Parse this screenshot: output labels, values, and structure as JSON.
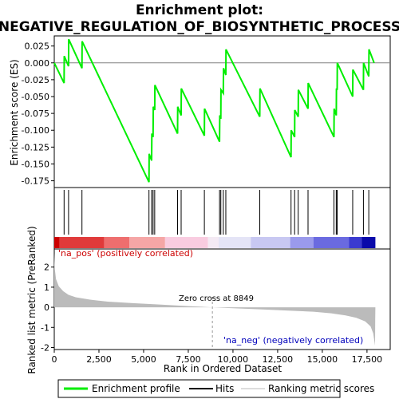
{
  "chart_data": {
    "type": "line",
    "title_line1": "Enrichment plot:",
    "title_line2": "NEGATIVE_REGULATION_OF_BIOSYNTHETIC_PROCESS",
    "xlabel": "Rank in Ordered Dataset",
    "ylabel_top": "Enrichment score (ES)",
    "ylabel_bottom": "Ranked list metric (PreRanked)",
    "xlim": [
      0,
      18800
    ],
    "es_ylim": [
      -0.185,
      0.04
    ],
    "metric_ylim": [
      -2.1,
      2.9
    ],
    "x_ticks": [
      0,
      2500,
      5000,
      7500,
      10000,
      12500,
      15000,
      17500
    ],
    "x_tick_labels": [
      "0",
      "2,500",
      "5,000",
      "7,500",
      "10,000",
      "12,500",
      "15,000",
      "17,500"
    ],
    "es_ticks": [
      0.025,
      0.0,
      -0.025,
      -0.05,
      -0.075,
      -0.1,
      -0.125,
      -0.15,
      -0.175
    ],
    "es_tick_labels": [
      "0.025",
      "0.000",
      "-0.025",
      "-0.050",
      "-0.075",
      "-0.100",
      "-0.125",
      "-0.150",
      "-0.175"
    ],
    "metric_ticks": [
      2,
      1,
      0,
      -1,
      -2
    ],
    "metric_tick_labels": [
      "2",
      "1",
      "0",
      "-1",
      "-2"
    ],
    "es_points": [
      [
        0,
        0.0
      ],
      [
        550,
        -0.03
      ],
      [
        560,
        0.01
      ],
      [
        800,
        -0.005
      ],
      [
        810,
        0.035
      ],
      [
        1550,
        -0.008
      ],
      [
        1560,
        0.032
      ],
      [
        5300,
        -0.177
      ],
      [
        5310,
        -0.135
      ],
      [
        5450,
        -0.145
      ],
      [
        5460,
        -0.105
      ],
      [
        5530,
        -0.11
      ],
      [
        5540,
        -0.065
      ],
      [
        5620,
        -0.07
      ],
      [
        5630,
        -0.033
      ],
      [
        6900,
        -0.105
      ],
      [
        6910,
        -0.065
      ],
      [
        7100,
        -0.078
      ],
      [
        7110,
        -0.038
      ],
      [
        8400,
        -0.108
      ],
      [
        8410,
        -0.068
      ],
      [
        9250,
        -0.117
      ],
      [
        9260,
        -0.078
      ],
      [
        9320,
        -0.083
      ],
      [
        9330,
        -0.04
      ],
      [
        9460,
        -0.045
      ],
      [
        9470,
        -0.008
      ],
      [
        9600,
        -0.018
      ],
      [
        9610,
        0.02
      ],
      [
        11500,
        -0.08
      ],
      [
        11510,
        -0.038
      ],
      [
        13250,
        -0.14
      ],
      [
        13260,
        -0.1
      ],
      [
        13450,
        -0.11
      ],
      [
        13460,
        -0.07
      ],
      [
        13650,
        -0.08
      ],
      [
        13660,
        -0.04
      ],
      [
        14200,
        -0.068
      ],
      [
        14210,
        -0.03
      ],
      [
        15650,
        -0.11
      ],
      [
        15660,
        -0.068
      ],
      [
        15780,
        -0.078
      ],
      [
        15790,
        -0.038
      ],
      [
        15830,
        -0.04
      ],
      [
        15840,
        0.0
      ],
      [
        16700,
        -0.05
      ],
      [
        16710,
        -0.01
      ],
      [
        17300,
        -0.04
      ],
      [
        17310,
        0.0
      ],
      [
        17600,
        -0.02
      ],
      [
        17610,
        0.02
      ],
      [
        17900,
        0.0
      ]
    ],
    "hits": [
      550,
      800,
      1550,
      5300,
      5450,
      5530,
      5620,
      6900,
      7100,
      8400,
      9250,
      9320,
      9460,
      9600,
      11500,
      13250,
      13450,
      13650,
      14200,
      15650,
      15780,
      15830,
      16700,
      17300,
      17600
    ],
    "metric_points": [
      [
        0,
        2.7
      ],
      [
        30,
        1.9
      ],
      [
        100,
        1.4
      ],
      [
        250,
        1.05
      ],
      [
        500,
        0.8
      ],
      [
        800,
        0.62
      ],
      [
        1200,
        0.5
      ],
      [
        2000,
        0.38
      ],
      [
        3000,
        0.28
      ],
      [
        4500,
        0.2
      ],
      [
        6000,
        0.13
      ],
      [
        7500,
        0.06
      ],
      [
        8849,
        0.0
      ],
      [
        10000,
        -0.05
      ],
      [
        11500,
        -0.1
      ],
      [
        12500,
        -0.14
      ],
      [
        13500,
        -0.18
      ],
      [
        14500,
        -0.22
      ],
      [
        15500,
        -0.3
      ],
      [
        16300,
        -0.4
      ],
      [
        16900,
        -0.52
      ],
      [
        17400,
        -0.7
      ],
      [
        17700,
        -0.95
      ],
      [
        17850,
        -1.3
      ],
      [
        17950,
        -1.9
      ],
      [
        17960,
        -0.6
      ],
      [
        17970,
        0.0
      ]
    ],
    "colorbar": [
      {
        "start": 0,
        "end": 300,
        "color": "#cc0000"
      },
      {
        "start": 300,
        "end": 2800,
        "color": "#e03a3a"
      },
      {
        "start": 2800,
        "end": 4200,
        "color": "#ee6e6e"
      },
      {
        "start": 4200,
        "end": 6200,
        "color": "#f5a6a6"
      },
      {
        "start": 6200,
        "end": 8600,
        "color": "#f9cce0"
      },
      {
        "start": 8600,
        "end": 9200,
        "color": "#f4eaf4"
      },
      {
        "start": 9200,
        "end": 11000,
        "color": "#e4e4f6"
      },
      {
        "start": 11000,
        "end": 13200,
        "color": "#c8c8f2"
      },
      {
        "start": 13200,
        "end": 14500,
        "color": "#9a9aec"
      },
      {
        "start": 14500,
        "end": 16500,
        "color": "#6a6ae0"
      },
      {
        "start": 16500,
        "end": 17200,
        "color": "#3a3ad0"
      },
      {
        "start": 17200,
        "end": 17970,
        "color": "#0a0aaa"
      }
    ],
    "pos_label": "'na_pos' (positively correlated)",
    "neg_label": "'na_neg' (negatively correlated)",
    "zero_cross_label": "Zero cross at 8849",
    "zero_cross_x": 8849,
    "legend": [
      {
        "label": "Enrichment profile",
        "color": "#00ee00"
      },
      {
        "label": "Hits",
        "color": "#000000"
      },
      {
        "label": "Ranking metric scores",
        "color": "#bbbbbb"
      }
    ],
    "colors": {
      "es_line": "#00ee00",
      "metric_fill": "#bbbbbb",
      "zero_line": "#808080",
      "zero_cross_line": "#999999",
      "frame": "#000000"
    }
  }
}
